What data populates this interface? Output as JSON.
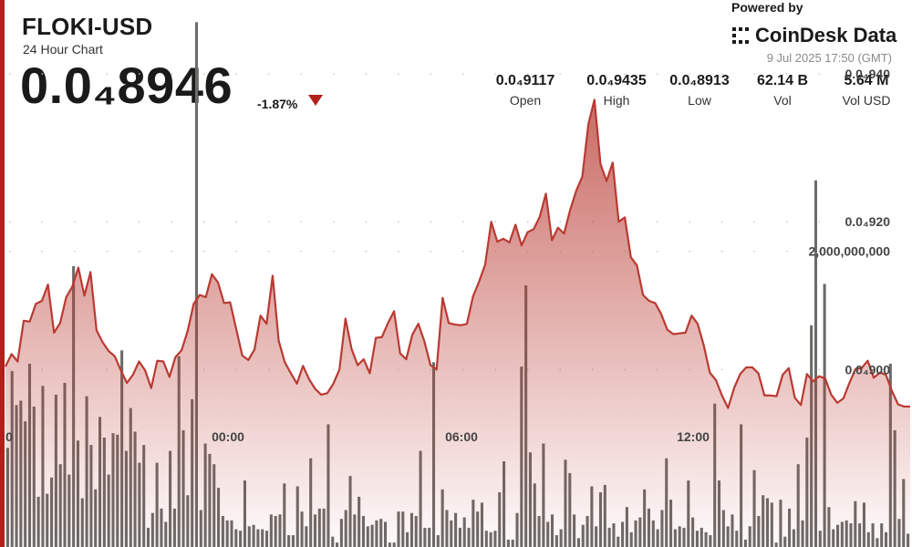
{
  "header": {
    "pair": "FLOKI-USD",
    "subtitle": "24 Hour Chart",
    "price": "0.0₄8946",
    "change": "-1.87%",
    "powered_by": "Powered by",
    "brand": "CoinDesk Data",
    "timestamp": "9 Jul 2025 17:50 (GMT)"
  },
  "stats": [
    {
      "value": "0.0₄9117",
      "label": "Open"
    },
    {
      "value": "0.0₄9435",
      "label": "High"
    },
    {
      "value": "0.0₄8913",
      "label": "Low"
    },
    {
      "value": "62.14 B",
      "label": "Vol"
    },
    {
      "value": "5.64 M",
      "label": "Vol USD"
    }
  ],
  "colors": {
    "accent": "#b2201a",
    "line": "#b93a32",
    "volume_bar": "#6b6b68",
    "change_arrow": "#b2201a",
    "grid_dot": "#c8c8c8"
  },
  "icons": {
    "change_arrow": "triangle-down-icon",
    "brand_logo": "coindesk-logo-icon"
  },
  "chart_data": {
    "type": "area",
    "title": "FLOKI-USD",
    "subtitle": "24 Hour Chart",
    "xlabel": "",
    "ylabel": "",
    "x_tick_labels": [
      "0",
      "00:00",
      "06:00",
      "12:00"
    ],
    "y_tick_labels": [
      "0.0₄940",
      "0.0₄920",
      "0.0₄900"
    ],
    "volume_tick_label": "2,000,000,000",
    "price_ylim": [
      8.76e-05,
      9.5e-05
    ],
    "volume_ylim": [
      0,
      3700000000
    ],
    "grid": "dotted horizontal",
    "series": [
      {
        "name": "",
        "kind": "price",
        "values": [
          9.004e-05,
          9.021e-05,
          9.011e-05,
          9.066e-05,
          9.065e-05,
          9.089e-05,
          9.093e-05,
          9.115e-05,
          9.05e-05,
          9.063e-05,
          9.098e-05,
          9.112e-05,
          9.138e-05,
          9.1e-05,
          9.132e-05,
          9.053e-05,
          9.037e-05,
          9.025e-05,
          9.018e-05,
          8.999e-05,
          8.982e-05,
          8.993e-05,
          9.011e-05,
          8.999e-05,
          8.975e-05,
          9.012e-05,
          9.011e-05,
          8.99e-05,
          9.017e-05,
          9.026e-05,
          9.052e-05,
          9.089e-05,
          9.101e-05,
          9.098e-05,
          9.129e-05,
          9.118e-05,
          9.09e-05,
          9.091e-05,
          9.055e-05,
          9.019e-05,
          9.013e-05,
          9.027e-05,
          9.073e-05,
          9.062e-05,
          9.127e-05,
          9.039e-05,
          9.01e-05,
          8.995e-05,
          8.981e-05,
          9.005e-05,
          8.987e-05,
          8.974e-05,
          8.966e-05,
          8.968e-05,
          8.981e-05,
          9e-05,
          9.069e-05,
          9.028e-05,
          9.006e-05,
          9.014e-05,
          8.995e-05,
          9.043e-05,
          9.044e-05,
          9.063e-05,
          9.079e-05,
          9.022e-05,
          9.014e-05,
          9.047e-05,
          9.062e-05,
          9.038e-05,
          9.006e-05,
          9e-05,
          9.097e-05,
          9.063e-05,
          9.061e-05,
          9.06e-05,
          9.062e-05,
          9.099e-05,
          9.119e-05,
          9.142e-05,
          9.2e-05,
          9.173e-05,
          9.177e-05,
          9.172e-05,
          9.196e-05,
          9.168e-05,
          9.186e-05,
          9.19e-05,
          9.207e-05,
          9.238e-05,
          9.175e-05,
          9.192e-05,
          9.184e-05,
          9.216e-05,
          9.242e-05,
          9.261e-05,
          9.332e-05,
          9.365e-05,
          9.278e-05,
          9.255e-05,
          9.28e-05,
          9.2e-05,
          9.206e-05,
          9.152e-05,
          9.141e-05,
          9.101e-05,
          9.093e-05,
          9.09e-05,
          9.075e-05,
          9.054e-05,
          9.048e-05,
          9.049e-05,
          9.05e-05,
          9.073e-05,
          9.062e-05,
          9.033e-05,
          8.996e-05,
          8.986e-05,
          8.965e-05,
          8.948e-05,
          8.975e-05,
          8.994e-05,
          9.003e-05,
          9.003e-05,
          8.995e-05,
          8.965e-05,
          8.965e-05,
          8.964e-05,
          8.993e-05,
          9.002e-05,
          8.962e-05,
          8.952e-05,
          8.994e-05,
          8.984e-05,
          8.991e-05,
          8.988e-05,
          8.966e-05,
          8.955e-05,
          8.961e-05,
          8.982e-05,
          9.001e-05,
          9.002e-05,
          9.012e-05,
          8.989e-05,
          8.996e-05,
          8.993e-05,
          8.971e-05,
          8.953e-05,
          8.95e-05,
          8.95e-05
        ]
      },
      {
        "name": "",
        "kind": "volume",
        "values": [
          670,
          1190,
          960,
          990,
          850,
          1240,
          950,
          340,
          1090,
          360,
          470,
          1030,
          560,
          1110,
          490,
          1900,
          720,
          330,
          1020,
          690,
          390,
          880,
          740,
          490,
          770,
          760,
          1330,
          650,
          940,
          780,
          570,
          690,
          130,
          230,
          570,
          260,
          170,
          650,
          260,
          1290,
          790,
          350,
          1000,
          3550,
          250,
          700,
          630,
          560,
          400,
          210,
          180,
          180,
          120,
          110,
          450,
          140,
          150,
          120,
          120,
          110,
          220,
          210,
          220,
          430,
          80,
          80,
          410,
          240,
          140,
          600,
          220,
          260,
          260,
          830,
          70,
          30,
          190,
          250,
          480,
          220,
          340,
          210,
          140,
          150,
          180,
          190,
          170,
          30,
          30,
          240,
          240,
          100,
          230,
          210,
          650,
          130,
          130,
          1250,
          80,
          390,
          250,
          180,
          230,
          130,
          200,
          130,
          320,
          240,
          300,
          110,
          100,
          110,
          370,
          580,
          50,
          50,
          230,
          1220,
          1770,
          640,
          430,
          210,
          700,
          170,
          220,
          80,
          120,
          590,
          500,
          220,
          60,
          150,
          210,
          410,
          140,
          370,
          420,
          130,
          160,
          70,
          170,
          270,
          100,
          180,
          200,
          390,
          260,
          180,
          120,
          250,
          600,
          320,
          120,
          140,
          130,
          450,
          200,
          110,
          130,
          100,
          80,
          970,
          450,
          250,
          140,
          220,
          110,
          830,
          50,
          140,
          520,
          210,
          350,
          330,
          300,
          30,
          320,
          70,
          260,
          120,
          560,
          180,
          740,
          1500,
          2480,
          110,
          1780,
          270,
          120,
          150,
          170,
          180,
          160,
          310,
          160,
          300,
          100,
          160,
          60,
          160,
          100,
          1240,
          790,
          190,
          460,
          90
        ]
      }
    ]
  }
}
